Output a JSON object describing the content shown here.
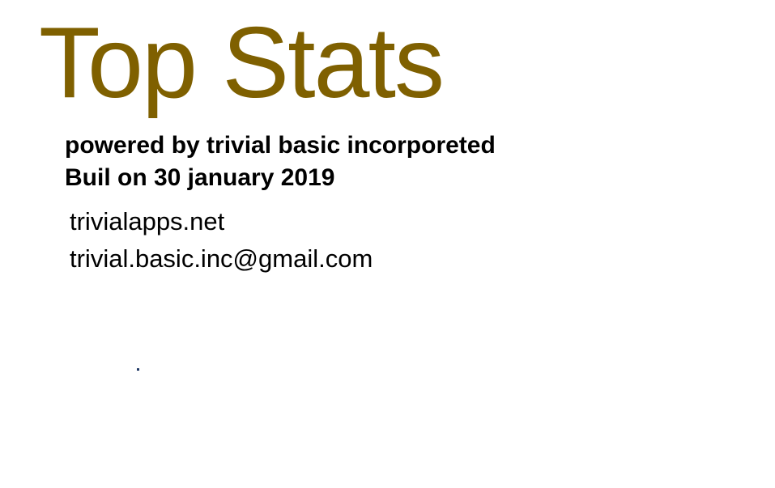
{
  "title": "Top Stats",
  "powered_by": "powered by trivial basic incorporeted",
  "build_info": "Buil on 30 january 2019",
  "website": "trivialapps.net",
  "email": "trivial.basic.inc@gmail.com",
  "colors": {
    "title": "#7f6000",
    "text": "#000000",
    "background": "#ffffff"
  }
}
